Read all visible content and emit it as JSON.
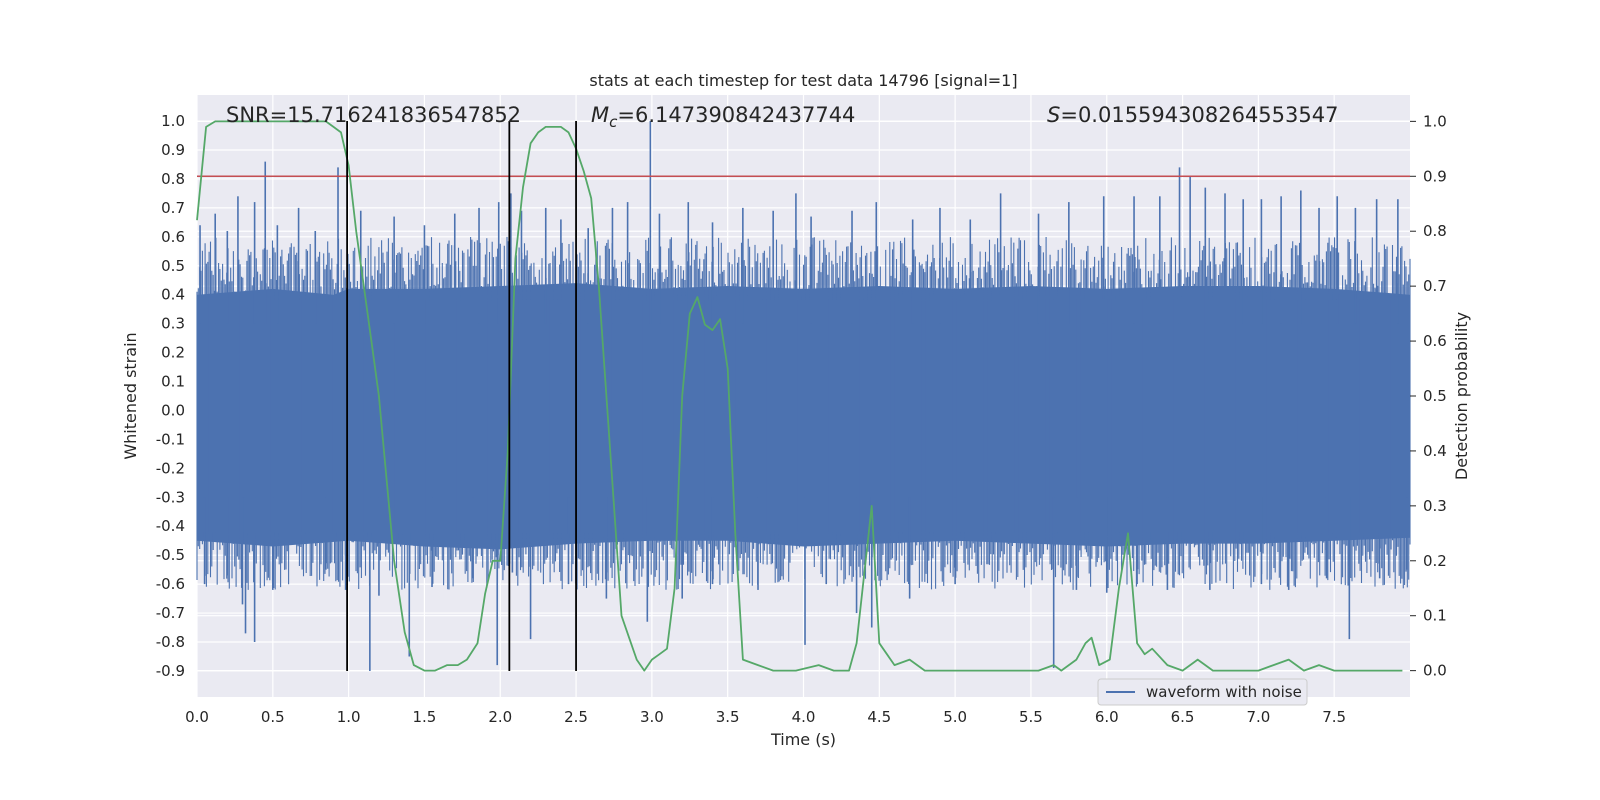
{
  "chart_data": {
    "type": "line",
    "title": "stats at each timestep for test data 14796 [signal=1]",
    "xlabel": "Time (s)",
    "ylabel": "Whitened strain",
    "y2label": "Detection probability",
    "xlim": [
      0.0,
      8.0
    ],
    "ylim": [
      -0.99,
      1.09
    ],
    "y2lim": [
      -0.048,
      1.048
    ],
    "grid": true,
    "legend_position": "lower-right",
    "xticks": [
      "0.0",
      "0.5",
      "1.0",
      "1.5",
      "2.0",
      "2.5",
      "3.0",
      "3.5",
      "4.0",
      "4.5",
      "5.0",
      "5.5",
      "6.0",
      "6.5",
      "7.0",
      "7.5"
    ],
    "yticks": [
      "1.0",
      "0.9",
      "0.8",
      "0.7",
      "0.6",
      "0.5",
      "0.4",
      "0.3",
      "0.2",
      "0.1",
      "0.0",
      "-0.1",
      "-0.2",
      "-0.3",
      "-0.4",
      "-0.5",
      "-0.6",
      "-0.7",
      "-0.8",
      "-0.9"
    ],
    "y2ticks": [
      "1.0",
      "0.9",
      "0.8",
      "0.7",
      "0.6",
      "0.5",
      "0.4",
      "0.3",
      "0.2",
      "0.1",
      "0.0"
    ],
    "annotations": {
      "snr": "SNR=15.716241836547852",
      "mc_symbol": "M",
      "mc_sub": "c",
      "mc_value": "=6.147390842437744",
      "s_symbol": "S",
      "s_value": "=0.015594308264553547"
    },
    "threshold": {
      "y2": 0.9,
      "color": "#c44e52"
    },
    "vertical_markers": {
      "x": [
        0.99,
        2.06,
        2.5
      ],
      "y_range": [
        -0.9,
        1.0
      ],
      "color": "#000000"
    },
    "series": [
      {
        "name": "waveform with noise",
        "color": "#4c72b0",
        "axis": "left",
        "envelope_upper": [
          [
            0.0,
            0.4
          ],
          [
            0.5,
            0.42
          ],
          [
            0.9,
            0.4
          ],
          [
            1.0,
            0.42
          ],
          [
            1.5,
            0.42
          ],
          [
            2.0,
            0.43
          ],
          [
            2.5,
            0.44
          ],
          [
            3.0,
            0.42
          ],
          [
            3.5,
            0.43
          ],
          [
            4.0,
            0.42
          ],
          [
            4.5,
            0.43
          ],
          [
            5.0,
            0.42
          ],
          [
            5.5,
            0.43
          ],
          [
            6.0,
            0.42
          ],
          [
            6.5,
            0.43
          ],
          [
            7.0,
            0.43
          ],
          [
            7.5,
            0.42
          ],
          [
            8.0,
            0.4
          ]
        ],
        "envelope_lower": [
          [
            0.0,
            -0.45
          ],
          [
            0.5,
            -0.47
          ],
          [
            1.0,
            -0.45
          ],
          [
            1.5,
            -0.47
          ],
          [
            2.0,
            -0.48
          ],
          [
            2.5,
            -0.46
          ],
          [
            3.0,
            -0.45
          ],
          [
            3.5,
            -0.45
          ],
          [
            4.0,
            -0.47
          ],
          [
            4.5,
            -0.46
          ],
          [
            5.0,
            -0.45
          ],
          [
            5.5,
            -0.46
          ],
          [
            6.0,
            -0.47
          ],
          [
            6.5,
            -0.46
          ],
          [
            7.0,
            -0.46
          ],
          [
            7.5,
            -0.45
          ],
          [
            8.0,
            -0.44
          ]
        ],
        "upper_spikes": [
          [
            0.02,
            0.64
          ],
          [
            0.12,
            0.68
          ],
          [
            0.2,
            0.62
          ],
          [
            0.27,
            0.74
          ],
          [
            0.38,
            0.72
          ],
          [
            0.45,
            0.86
          ],
          [
            0.53,
            0.64
          ],
          [
            0.67,
            0.7
          ],
          [
            0.78,
            0.62
          ],
          [
            0.93,
            0.84
          ],
          [
            1.08,
            0.69
          ],
          [
            1.3,
            0.67
          ],
          [
            1.5,
            0.64
          ],
          [
            1.7,
            0.68
          ],
          [
            1.86,
            0.7
          ],
          [
            1.99,
            0.72
          ],
          [
            2.07,
            0.75
          ],
          [
            2.14,
            0.69
          ],
          [
            2.3,
            0.7
          ],
          [
            2.4,
            0.66
          ],
          [
            2.58,
            0.63
          ],
          [
            2.74,
            0.7
          ],
          [
            2.84,
            0.72
          ],
          [
            2.99,
            1.0
          ],
          [
            3.05,
            0.68
          ],
          [
            3.24,
            0.72
          ],
          [
            3.4,
            0.65
          ],
          [
            3.6,
            0.7
          ],
          [
            3.8,
            0.69
          ],
          [
            3.95,
            0.75
          ],
          [
            4.05,
            0.67
          ],
          [
            4.32,
            0.69
          ],
          [
            4.48,
            0.72
          ],
          [
            4.72,
            0.66
          ],
          [
            4.9,
            0.7
          ],
          [
            5.1,
            0.66
          ],
          [
            5.3,
            0.75
          ],
          [
            5.55,
            0.68
          ],
          [
            5.75,
            0.72
          ],
          [
            5.98,
            0.74
          ],
          [
            6.18,
            0.74
          ],
          [
            6.35,
            0.74
          ],
          [
            6.48,
            0.84
          ],
          [
            6.55,
            0.81
          ],
          [
            6.65,
            0.77
          ],
          [
            6.78,
            0.75
          ],
          [
            6.9,
            0.73
          ],
          [
            7.02,
            0.73
          ],
          [
            7.15,
            0.74
          ],
          [
            7.28,
            0.76
          ],
          [
            7.4,
            0.7
          ],
          [
            7.52,
            0.74
          ],
          [
            7.64,
            0.7
          ],
          [
            7.78,
            0.73
          ],
          [
            7.92,
            0.73
          ]
        ],
        "lower_spikes": [
          [
            0.05,
            -0.6
          ],
          [
            0.2,
            -0.57
          ],
          [
            0.3,
            -0.67
          ],
          [
            0.32,
            -0.77
          ],
          [
            0.38,
            -0.8
          ],
          [
            0.5,
            -0.62
          ],
          [
            0.85,
            -0.55
          ],
          [
            0.98,
            -0.62
          ],
          [
            1.14,
            -0.9
          ],
          [
            1.2,
            -0.64
          ],
          [
            1.4,
            -0.85
          ],
          [
            1.55,
            -0.61
          ],
          [
            1.82,
            -0.58
          ],
          [
            1.98,
            -0.88
          ],
          [
            2.08,
            -0.56
          ],
          [
            2.2,
            -0.79
          ],
          [
            2.45,
            -0.6
          ],
          [
            2.7,
            -0.65
          ],
          [
            2.97,
            -0.73
          ],
          [
            3.2,
            -0.65
          ],
          [
            3.4,
            -0.6
          ],
          [
            3.7,
            -0.62
          ],
          [
            4.01,
            -0.81
          ],
          [
            4.15,
            -0.6
          ],
          [
            4.35,
            -0.7
          ],
          [
            4.45,
            -0.75
          ],
          [
            4.7,
            -0.65
          ],
          [
            5.0,
            -0.6
          ],
          [
            5.65,
            -0.89
          ],
          [
            5.8,
            -0.62
          ],
          [
            6.0,
            -0.63
          ],
          [
            6.2,
            -0.6
          ],
          [
            6.4,
            -0.62
          ],
          [
            6.68,
            -0.62
          ],
          [
            7.02,
            -0.6
          ],
          [
            7.2,
            -0.62
          ],
          [
            7.45,
            -0.58
          ],
          [
            7.6,
            -0.79
          ],
          [
            7.8,
            -0.58
          ],
          [
            7.98,
            -0.55
          ]
        ]
      },
      {
        "name": "detection probability",
        "color": "#55a868",
        "axis": "right",
        "points": [
          [
            0.0,
            0.82
          ],
          [
            0.06,
            0.99
          ],
          [
            0.12,
            1.0
          ],
          [
            0.25,
            1.0
          ],
          [
            0.5,
            1.0
          ],
          [
            0.75,
            1.0
          ],
          [
            0.85,
            1.0
          ],
          [
            0.9,
            0.99
          ],
          [
            0.95,
            0.98
          ],
          [
            1.0,
            0.92
          ],
          [
            1.05,
            0.8
          ],
          [
            1.1,
            0.7
          ],
          [
            1.15,
            0.6
          ],
          [
            1.2,
            0.5
          ],
          [
            1.25,
            0.35
          ],
          [
            1.3,
            0.2
          ],
          [
            1.37,
            0.07
          ],
          [
            1.43,
            0.01
          ],
          [
            1.5,
            0.0
          ],
          [
            1.57,
            0.0
          ],
          [
            1.65,
            0.01
          ],
          [
            1.72,
            0.01
          ],
          [
            1.78,
            0.02
          ],
          [
            1.85,
            0.05
          ],
          [
            1.9,
            0.14
          ],
          [
            1.95,
            0.2
          ],
          [
            2.0,
            0.2
          ],
          [
            2.05,
            0.4
          ],
          [
            2.1,
            0.75
          ],
          [
            2.15,
            0.88
          ],
          [
            2.2,
            0.96
          ],
          [
            2.25,
            0.98
          ],
          [
            2.3,
            0.99
          ],
          [
            2.35,
            0.99
          ],
          [
            2.4,
            0.99
          ],
          [
            2.45,
            0.98
          ],
          [
            2.5,
            0.95
          ],
          [
            2.55,
            0.91
          ],
          [
            2.6,
            0.86
          ],
          [
            2.65,
            0.7
          ],
          [
            2.7,
            0.5
          ],
          [
            2.75,
            0.3
          ],
          [
            2.8,
            0.1
          ],
          [
            2.85,
            0.06
          ],
          [
            2.9,
            0.02
          ],
          [
            2.95,
            0.0
          ],
          [
            3.0,
            0.02
          ],
          [
            3.05,
            0.03
          ],
          [
            3.1,
            0.04
          ],
          [
            3.15,
            0.15
          ],
          [
            3.2,
            0.5
          ],
          [
            3.25,
            0.65
          ],
          [
            3.3,
            0.68
          ],
          [
            3.35,
            0.63
          ],
          [
            3.4,
            0.62
          ],
          [
            3.45,
            0.64
          ],
          [
            3.5,
            0.55
          ],
          [
            3.55,
            0.25
          ],
          [
            3.6,
            0.02
          ],
          [
            3.7,
            0.01
          ],
          [
            3.8,
            0.0
          ],
          [
            3.95,
            0.0
          ],
          [
            4.1,
            0.01
          ],
          [
            4.2,
            0.0
          ],
          [
            4.3,
            0.0
          ],
          [
            4.35,
            0.05
          ],
          [
            4.45,
            0.3
          ],
          [
            4.5,
            0.05
          ],
          [
            4.6,
            0.01
          ],
          [
            4.7,
            0.02
          ],
          [
            4.8,
            0.0
          ],
          [
            4.9,
            0.0
          ],
          [
            5.0,
            0.0
          ],
          [
            5.2,
            0.0
          ],
          [
            5.4,
            0.0
          ],
          [
            5.55,
            0.0
          ],
          [
            5.65,
            0.01
          ],
          [
            5.7,
            0.0
          ],
          [
            5.8,
            0.02
          ],
          [
            5.86,
            0.05
          ],
          [
            5.9,
            0.06
          ],
          [
            5.95,
            0.01
          ],
          [
            6.02,
            0.02
          ],
          [
            6.08,
            0.15
          ],
          [
            6.14,
            0.25
          ],
          [
            6.2,
            0.05
          ],
          [
            6.25,
            0.03
          ],
          [
            6.3,
            0.04
          ],
          [
            6.4,
            0.01
          ],
          [
            6.5,
            0.0
          ],
          [
            6.6,
            0.02
          ],
          [
            6.7,
            0.0
          ],
          [
            6.8,
            0.0
          ],
          [
            6.9,
            0.0
          ],
          [
            7.0,
            0.0
          ],
          [
            7.1,
            0.01
          ],
          [
            7.2,
            0.02
          ],
          [
            7.3,
            0.0
          ],
          [
            7.4,
            0.01
          ],
          [
            7.5,
            0.0
          ],
          [
            7.6,
            0.0
          ],
          [
            7.7,
            0.0
          ],
          [
            7.8,
            0.0
          ],
          [
            7.95,
            0.0
          ]
        ]
      }
    ]
  }
}
